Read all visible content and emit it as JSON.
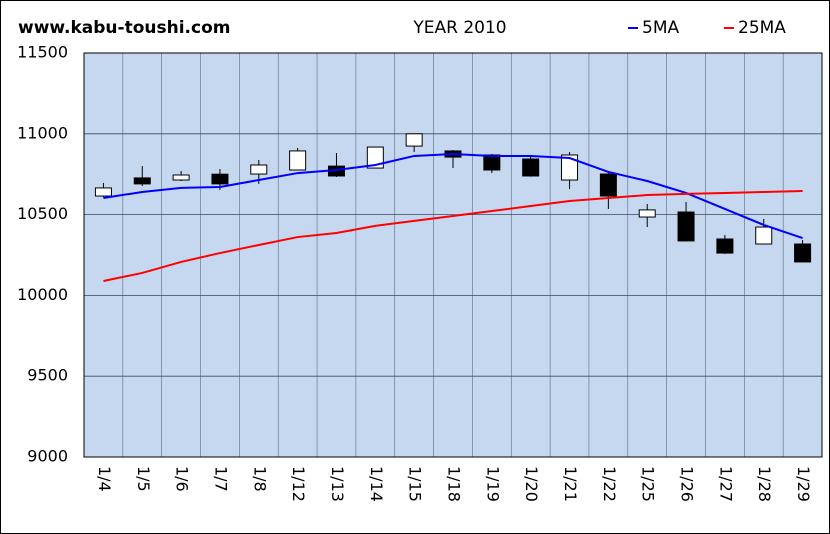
{
  "chart_data": {
    "type": "candlestick",
    "title": "YEAR 2010",
    "source": "www.kabu-toushi.com",
    "categories": [
      "1/4",
      "1/5",
      "1/6",
      "1/7",
      "1/8",
      "1/12",
      "1/13",
      "1/14",
      "1/15",
      "1/18",
      "1/19",
      "1/20",
      "1/21",
      "1/22",
      "1/25",
      "1/26",
      "1/27",
      "1/28",
      "1/29"
    ],
    "open": [
      10615,
      10727,
      10714,
      10750,
      10751,
      10776,
      10800,
      10788,
      10924,
      10894,
      10869,
      10844,
      10714,
      10751,
      10485,
      10516,
      10349,
      10318,
      10318
    ],
    "high": [
      10696,
      10800,
      10770,
      10782,
      10838,
      10912,
      10881,
      10918,
      11000,
      10900,
      10875,
      10869,
      10887,
      10764,
      10566,
      10578,
      10374,
      10473,
      10343
    ],
    "low": [
      10609,
      10677,
      10708,
      10652,
      10690,
      10776,
      10733,
      10788,
      10887,
      10788,
      10757,
      10735,
      10658,
      10535,
      10423,
      10337,
      10256,
      10318,
      10207
    ],
    "close": [
      10665,
      10690,
      10745,
      10690,
      10807,
      10894,
      10739,
      10918,
      11000,
      10856,
      10776,
      10739,
      10869,
      10615,
      10529,
      10337,
      10262,
      10423,
      10207
    ],
    "up_color": "#ffffff",
    "down_color": "#000000",
    "series": [
      {
        "name": "5MA",
        "color": "#0000ff",
        "values": [
          10603,
          10640,
          10665,
          10671,
          10714,
          10757,
          10776,
          10807,
          10863,
          10875,
          10863,
          10863,
          10850,
          10764,
          10708,
          10634,
          10535,
          10436,
          10355
        ]
      },
      {
        "name": "25MA",
        "color": "#ff0000",
        "values": [
          10089,
          10139,
          10207,
          10262,
          10312,
          10361,
          10386,
          10430,
          10461,
          10491,
          10522,
          10553,
          10584,
          10603,
          10621,
          10628,
          10634,
          10640,
          10646
        ]
      }
    ],
    "ylim": [
      9000,
      11500
    ],
    "yticks": [
      9000,
      9500,
      10000,
      10500,
      11000,
      11500
    ],
    "grid": true
  }
}
